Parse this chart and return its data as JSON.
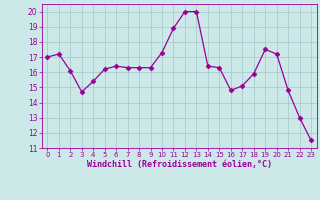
{
  "x": [
    0,
    1,
    2,
    3,
    4,
    5,
    6,
    7,
    8,
    9,
    10,
    11,
    12,
    13,
    14,
    15,
    16,
    17,
    18,
    19,
    20,
    21,
    22,
    23
  ],
  "y": [
    17.0,
    17.2,
    16.1,
    14.7,
    15.4,
    16.2,
    16.4,
    16.3,
    16.3,
    16.3,
    17.3,
    18.9,
    20.0,
    20.0,
    16.4,
    16.3,
    14.8,
    15.1,
    15.9,
    17.5,
    17.2,
    14.8,
    13.0,
    11.5
  ],
  "line_color": "#990099",
  "marker": "D",
  "marker_size": 2.5,
  "bg_color": "#cce8e8",
  "grid_color": "#aacccc",
  "xlabel": "Windchill (Refroidissement éolien,°C)",
  "xlabel_color": "#990099",
  "tick_color": "#990099",
  "ylim": [
    11,
    20.5
  ],
  "yticks": [
    11,
    12,
    13,
    14,
    15,
    16,
    17,
    18,
    19,
    20
  ],
  "xlim": [
    -0.5,
    23.5
  ],
  "xticks": [
    0,
    1,
    2,
    3,
    4,
    5,
    6,
    7,
    8,
    9,
    10,
    11,
    12,
    13,
    14,
    15,
    16,
    17,
    18,
    19,
    20,
    21,
    22,
    23
  ]
}
